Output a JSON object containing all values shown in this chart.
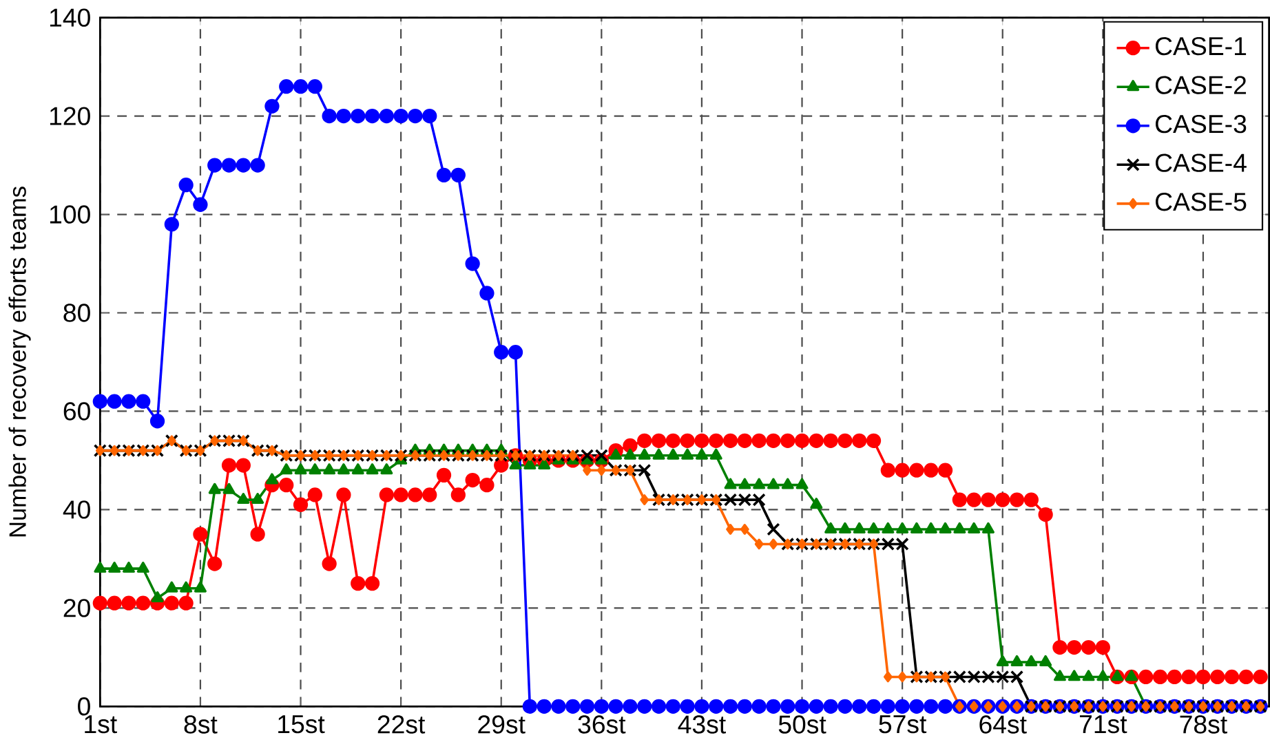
{
  "chart_data": {
    "type": "line",
    "ylabel": "Number of recovery efforts teams",
    "x": [
      1,
      2,
      3,
      4,
      5,
      6,
      7,
      8,
      9,
      10,
      11,
      12,
      13,
      14,
      15,
      16,
      17,
      18,
      19,
      20,
      21,
      22,
      23,
      24,
      25,
      26,
      27,
      28,
      29,
      30,
      31,
      32,
      33,
      34,
      35,
      36,
      37,
      38,
      39,
      40,
      41,
      42,
      43,
      44,
      45,
      46,
      47,
      48,
      49,
      50,
      51,
      52,
      53,
      54,
      55,
      56,
      57,
      58,
      59,
      60,
      61,
      62,
      63,
      64,
      65,
      66,
      67,
      68,
      69,
      70,
      71,
      72,
      73,
      74,
      75,
      76,
      77,
      78,
      79,
      80,
      81,
      82
    ],
    "xlim": [
      1,
      82.6
    ],
    "xticks": [
      {
        "value": 1,
        "label": "1st"
      },
      {
        "value": 8,
        "label": "8st"
      },
      {
        "value": 15,
        "label": "15st"
      },
      {
        "value": 22,
        "label": "22st"
      },
      {
        "value": 29,
        "label": "29st"
      },
      {
        "value": 36,
        "label": "36st"
      },
      {
        "value": 43,
        "label": "43st"
      },
      {
        "value": 50,
        "label": "50st"
      },
      {
        "value": 57,
        "label": "57st"
      },
      {
        "value": 64,
        "label": "64st"
      },
      {
        "value": 71,
        "label": "71st"
      },
      {
        "value": 78,
        "label": "78st"
      }
    ],
    "ylim": [
      0,
      140
    ],
    "yticks": [
      0,
      20,
      40,
      60,
      80,
      100,
      120,
      140
    ],
    "grid": true,
    "legend": "top right",
    "series": [
      {
        "name": "CASE-1",
        "color": "#ff0000",
        "marker": "circle",
        "values": [
          21,
          21,
          21,
          21,
          21,
          21,
          21,
          35,
          29,
          49,
          49,
          35,
          45,
          45,
          41,
          43,
          29,
          43,
          25,
          25,
          43,
          43,
          43,
          43,
          47,
          43,
          46,
          45,
          49,
          51,
          50,
          50,
          50,
          50,
          50,
          50,
          52,
          53,
          54,
          54,
          54,
          54,
          54,
          54,
          54,
          54,
          54,
          54,
          54,
          54,
          54,
          54,
          54,
          54,
          54,
          48,
          48,
          48,
          48,
          48,
          42,
          42,
          42,
          42,
          42,
          42,
          39,
          12,
          12,
          12,
          12,
          6,
          6,
          6,
          6,
          6,
          6,
          6,
          6,
          6,
          6,
          6
        ]
      },
      {
        "name": "CASE-2",
        "color": "#008000",
        "marker": "triangle",
        "values": [
          28,
          28,
          28,
          28,
          22,
          24,
          24,
          24,
          44,
          44,
          42,
          42,
          46,
          48,
          48,
          48,
          48,
          48,
          48,
          48,
          48,
          50,
          52,
          52,
          52,
          52,
          52,
          52,
          52,
          49,
          49,
          49,
          50,
          50,
          50,
          50,
          51,
          51,
          51,
          51,
          51,
          51,
          51,
          51,
          45,
          45,
          45,
          45,
          45,
          45,
          41,
          36,
          36,
          36,
          36,
          36,
          36,
          36,
          36,
          36,
          36,
          36,
          36,
          9,
          9,
          9,
          9,
          6,
          6,
          6,
          6,
          6,
          6,
          0,
          null,
          null,
          null,
          null,
          null,
          null,
          null,
          null
        ]
      },
      {
        "name": "CASE-3",
        "color": "#0000ff",
        "marker": "circle",
        "values": [
          62,
          62,
          62,
          62,
          58,
          98,
          106,
          102,
          110,
          110,
          110,
          110,
          122,
          126,
          126,
          126,
          120,
          120,
          120,
          120,
          120,
          120,
          120,
          120,
          108,
          108,
          90,
          84,
          72,
          72,
          0,
          0,
          0,
          0,
          0,
          0,
          0,
          0,
          0,
          0,
          0,
          0,
          0,
          0,
          0,
          0,
          0,
          0,
          0,
          0,
          0,
          0,
          0,
          0,
          0,
          0,
          0,
          0,
          0,
          0,
          0,
          0,
          0,
          0,
          0,
          0,
          0,
          0,
          0,
          0,
          0,
          0,
          0,
          0,
          0,
          0,
          0,
          0,
          0,
          0,
          0,
          0
        ]
      },
      {
        "name": "CASE-4",
        "color": "#000000",
        "marker": "cross",
        "values": [
          52,
          52,
          52,
          52,
          52,
          54,
          52,
          52,
          54,
          54,
          54,
          52,
          52,
          51,
          51,
          51,
          51,
          51,
          51,
          51,
          51,
          51,
          51,
          51,
          51,
          51,
          51,
          51,
          51,
          51,
          51,
          51,
          51,
          51,
          51,
          51,
          48,
          48,
          48,
          42,
          42,
          42,
          42,
          42,
          42,
          42,
          42,
          36,
          33,
          33,
          33,
          33,
          33,
          33,
          33,
          33,
          33,
          6,
          6,
          6,
          6,
          6,
          6,
          6,
          6,
          0,
          0,
          0,
          0,
          0,
          0,
          0,
          0,
          0,
          0,
          0,
          0,
          0,
          0,
          0,
          0,
          0
        ]
      },
      {
        "name": "CASE-5",
        "color": "#ff6600",
        "marker": "diamond",
        "values": [
          52,
          52,
          52,
          52,
          52,
          54,
          52,
          52,
          54,
          54,
          54,
          52,
          52,
          51,
          51,
          51,
          51,
          51,
          51,
          51,
          51,
          51,
          51,
          51,
          51,
          51,
          51,
          51,
          51,
          51,
          51,
          51,
          51,
          51,
          48,
          48,
          48,
          48,
          42,
          42,
          42,
          42,
          42,
          42,
          36,
          36,
          33,
          33,
          33,
          33,
          33,
          33,
          33,
          33,
          33,
          6,
          6,
          6,
          6,
          6,
          0,
          0,
          0,
          0,
          0,
          0,
          0,
          0,
          0,
          0,
          0,
          0,
          0,
          0,
          0,
          0,
          0,
          0,
          0,
          0,
          0,
          0
        ]
      }
    ]
  }
}
